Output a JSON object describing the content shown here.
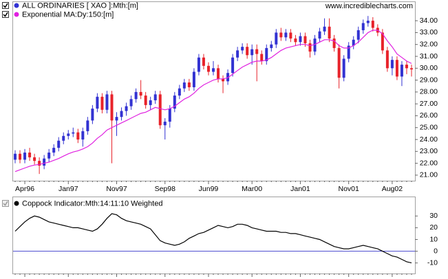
{
  "chart_data": [
    {
      "type": "candlestick",
      "name": "ALL ORDINARIES [ XAO ]:Mth:[m]",
      "watermark": "www.incrediblecharts.com",
      "up_color": "#3232d2",
      "down_color": "#e8222a",
      "categories": [
        null,
        null,
        "Apr96",
        null,
        null,
        null,
        null,
        null,
        null,
        null,
        null,
        "Jan97",
        null,
        null,
        null,
        null,
        null,
        null,
        null,
        null,
        null,
        "Nov97",
        null,
        null,
        null,
        null,
        null,
        null,
        null,
        null,
        null,
        "Sep98",
        null,
        null,
        null,
        null,
        null,
        null,
        null,
        null,
        "Jun99",
        null,
        null,
        null,
        null,
        null,
        null,
        null,
        null,
        "Mar00",
        null,
        null,
        null,
        null,
        null,
        null,
        null,
        null,
        null,
        "Jan01",
        null,
        null,
        null,
        null,
        null,
        null,
        null,
        null,
        null,
        "Nov01",
        null,
        null,
        null,
        null,
        null,
        null,
        null,
        null,
        "Aug02",
        null,
        null,
        null,
        null
      ],
      "open": [
        22.3,
        22.8,
        22.3,
        22.9,
        22.5,
        22.2,
        21.8,
        22.4,
        22.9,
        23.3,
        23.9,
        24.3,
        24.5,
        24.6,
        24.0,
        24.7,
        25.6,
        26.6,
        27.6,
        26.5,
        27.8,
        25.6,
        25.9,
        26.4,
        26.8,
        27.4,
        28.0,
        27.7,
        26.9,
        27.3,
        27.8,
        25.2,
        25.5,
        26.6,
        27.7,
        28.3,
        28.8,
        28.4,
        29.7,
        30.9,
        30.2,
        29.7,
        30.0,
        29.1,
        28.9,
        29.6,
        30.9,
        31.5,
        31.8,
        31.1,
        31.6,
        31.2,
        30.6,
        31.7,
        32.0,
        33.0,
        32.6,
        33.0,
        32.5,
        32.2,
        32.7,
        32.1,
        31.4,
        32.5,
        33.1,
        33.5,
        32.5,
        31.7,
        29.2,
        30.8,
        31.9,
        32.4,
        33.2,
        33.8,
        34.0,
        33.4,
        33.0,
        31.5,
        30.0,
        30.7,
        29.3,
        30.3,
        30.0
      ],
      "high": [
        23.1,
        23.1,
        23.2,
        23.3,
        22.8,
        22.5,
        22.7,
        23.2,
        23.6,
        24.2,
        24.6,
        24.8,
        25.0,
        24.9,
        25.0,
        25.9,
        26.9,
        27.9,
        27.9,
        28.1,
        28.1,
        26.3,
        26.7,
        27.1,
        27.7,
        28.3,
        29.0,
        28.0,
        27.6,
        28.1,
        28.1,
        25.8,
        26.9,
        28.0,
        28.6,
        29.1,
        29.1,
        30.0,
        31.2,
        31.2,
        30.5,
        30.6,
        30.3,
        29.4,
        29.9,
        31.2,
        31.8,
        32.1,
        32.1,
        32.0,
        32.0,
        31.5,
        32.0,
        32.3,
        33.3,
        33.4,
        33.3,
        33.3,
        32.8,
        33.0,
        33.0,
        32.4,
        32.8,
        33.4,
        34.2,
        34.2,
        32.8,
        32.0,
        31.1,
        32.2,
        32.7,
        33.5,
        34.1,
        34.4,
        34.3,
        33.7,
        33.3,
        31.8,
        31.0,
        31.0,
        30.6,
        30.6,
        30.3
      ],
      "low": [
        22.0,
        22.0,
        22.0,
        22.2,
        21.9,
        21.1,
        21.5,
        22.1,
        22.6,
        23.0,
        23.6,
        24.0,
        24.2,
        23.7,
        23.4,
        24.4,
        25.3,
        26.3,
        26.2,
        26.2,
        22.0,
        24.3,
        25.6,
        26.0,
        26.5,
        27.1,
        27.4,
        26.6,
        26.5,
        27.0,
        24.9,
        24.0,
        25.0,
        26.3,
        27.4,
        28.0,
        28.1,
        28.1,
        29.4,
        29.9,
        29.4,
        29.4,
        28.8,
        27.9,
        28.6,
        29.3,
        30.6,
        31.2,
        30.8,
        30.3,
        28.9,
        30.3,
        30.3,
        31.4,
        31.7,
        32.3,
        32.3,
        32.2,
        31.9,
        31.9,
        31.8,
        30.9,
        31.1,
        32.2,
        32.8,
        32.2,
        31.4,
        28.3,
        28.9,
        30.5,
        31.6,
        32.1,
        32.9,
        33.5,
        33.1,
        32.7,
        31.2,
        29.7,
        29.4,
        29.0,
        28.5,
        29.5,
        29.3
      ],
      "close": [
        22.8,
        22.3,
        22.9,
        22.5,
        22.2,
        21.8,
        22.4,
        22.9,
        23.3,
        23.9,
        24.3,
        24.5,
        24.6,
        24.0,
        24.7,
        25.6,
        26.6,
        27.6,
        26.5,
        27.8,
        25.6,
        25.9,
        26.4,
        26.8,
        27.4,
        28.0,
        27.7,
        26.9,
        27.3,
        27.8,
        25.2,
        25.5,
        26.6,
        27.7,
        28.3,
        28.8,
        28.4,
        29.7,
        30.9,
        30.2,
        29.7,
        30.0,
        29.1,
        28.9,
        29.6,
        30.9,
        31.5,
        31.8,
        31.1,
        31.6,
        31.2,
        30.6,
        31.7,
        32.0,
        33.0,
        32.6,
        33.0,
        32.5,
        32.2,
        32.7,
        32.1,
        31.4,
        32.5,
        33.1,
        33.5,
        32.5,
        31.7,
        29.2,
        30.8,
        31.9,
        32.4,
        33.2,
        33.8,
        34.0,
        33.4,
        33.0,
        31.5,
        30.0,
        30.7,
        29.3,
        30.3,
        30.0,
        29.9
      ],
      "series": [
        {
          "name": "Exponential MA:Dy:150:[m]",
          "color": "#e020e0",
          "values": [
            21.3,
            21.45,
            21.6,
            21.75,
            21.85,
            21.9,
            22.0,
            22.1,
            22.25,
            22.4,
            22.6,
            22.8,
            22.95,
            23.05,
            23.2,
            23.4,
            23.7,
            24.1,
            24.4,
            24.8,
            25.0,
            25.2,
            25.4,
            25.6,
            25.8,
            26.0,
            26.2,
            26.3,
            26.5,
            26.7,
            26.6,
            26.5,
            26.6,
            26.8,
            27.1,
            27.4,
            27.6,
            27.9,
            28.3,
            28.6,
            28.8,
            29.0,
            29.1,
            29.1,
            29.2,
            29.5,
            29.8,
            30.1,
            30.3,
            30.5,
            30.6,
            30.6,
            30.7,
            30.9,
            31.2,
            31.5,
            31.7,
            31.8,
            31.9,
            32.0,
            32.0,
            31.9,
            32.0,
            32.2,
            32.4,
            32.4,
            32.3,
            31.9,
            31.7,
            31.7,
            31.9,
            32.2,
            32.6,
            33.0,
            33.2,
            33.2,
            32.9,
            32.3,
            31.8,
            31.2,
            30.9,
            30.6,
            30.4
          ]
        }
      ],
      "ylim": [
        20.53,
        35.57
      ],
      "yticks": [
        {
          "value": 21,
          "label": "21.00"
        },
        {
          "value": 22,
          "label": "22.00"
        },
        {
          "value": 23,
          "label": "23.00"
        },
        {
          "value": 24,
          "label": "24.00"
        },
        {
          "value": 25,
          "label": "25.00"
        },
        {
          "value": 26,
          "label": "26.00"
        },
        {
          "value": 27,
          "label": "27.00"
        },
        {
          "value": 28,
          "label": "28.00"
        },
        {
          "value": 29,
          "label": "29.00"
        },
        {
          "value": 30,
          "label": "30.00"
        },
        {
          "value": 31,
          "label": "31.00"
        },
        {
          "value": 32,
          "label": "32.00"
        },
        {
          "value": 33,
          "label": "33.00"
        },
        {
          "value": 34,
          "label": "34.00"
        }
      ]
    },
    {
      "type": "line",
      "series": [
        {
          "name": "Coppock Indicator:Mth:14:11:10 Weighted",
          "color": "#000000",
          "values": [
            17,
            21,
            25,
            28,
            30,
            29,
            27,
            25,
            24,
            23,
            22,
            21,
            20,
            20,
            19,
            18,
            17,
            19,
            23,
            28,
            32,
            31,
            28,
            26,
            25,
            24,
            23,
            21,
            19,
            14,
            9,
            7,
            6,
            5,
            6,
            8,
            11,
            13,
            15,
            16,
            18,
            20,
            22,
            21,
            20,
            21,
            23,
            23,
            22,
            20,
            19,
            18,
            17,
            17,
            17,
            16,
            16,
            15,
            15,
            14,
            13,
            12,
            11,
            10,
            8,
            6,
            4,
            3,
            2,
            2,
            3,
            4,
            5,
            4,
            3,
            2,
            0,
            -2,
            -4,
            -5,
            -7,
            -9,
            -10
          ]
        }
      ],
      "reference_line": 0,
      "reference_color": "#5050d0",
      "ylim": [
        -19,
        46
      ],
      "yticks": [
        30,
        20,
        10,
        0,
        -10
      ]
    }
  ]
}
